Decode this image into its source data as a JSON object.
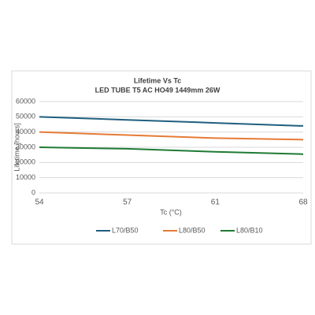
{
  "chart_data": {
    "type": "line",
    "title": "Lifetime Vs Tc",
    "subtitle": "LED TUBE T5 AC HO49 1449mm 26W",
    "x_label": "Tc (°C)",
    "y_label": "Lifetime [hours]",
    "categories": [
      "54",
      "57",
      "61",
      "68"
    ],
    "series": [
      {
        "name": "L70/B50",
        "color": "#1f5f7f",
        "values": [
          50000,
          48000,
          46000,
          44000
        ]
      },
      {
        "name": "L80/B50",
        "color": "#e57b35",
        "values": [
          40000,
          38000,
          36000,
          35000
        ]
      },
      {
        "name": "L80/B10",
        "color": "#1f7a33",
        "values": [
          30000,
          29000,
          27000,
          25500
        ]
      }
    ],
    "ylim": [
      0,
      60000
    ],
    "yticks": [
      0,
      10000,
      20000,
      30000,
      40000,
      50000,
      60000
    ],
    "grid": true,
    "legend": "bottom"
  }
}
